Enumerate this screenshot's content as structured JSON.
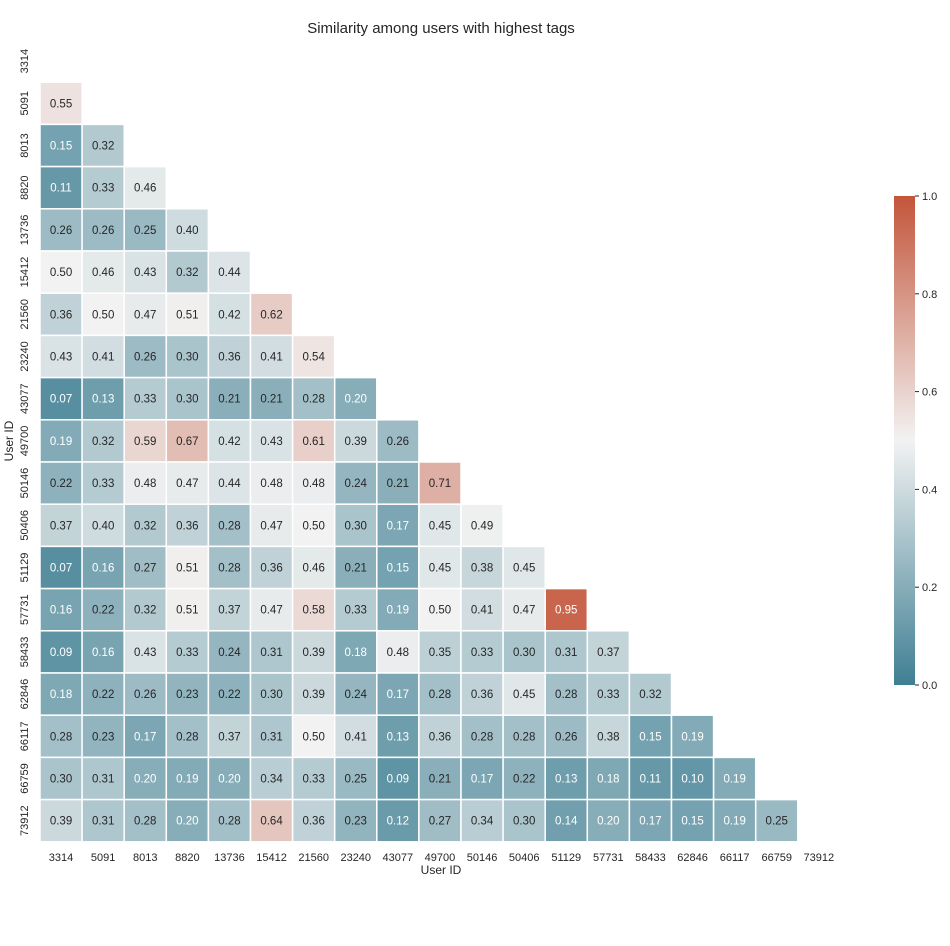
{
  "chart_data": {
    "type": "heatmap",
    "title": "Similarity among users with highest tags",
    "xlabel": "User ID",
    "ylabel": "User ID",
    "labels": [
      "3314",
      "5091",
      "8013",
      "8820",
      "13736",
      "15412",
      "21560",
      "23240",
      "43077",
      "49700",
      "50146",
      "50406",
      "51129",
      "57731",
      "58433",
      "62846",
      "66117",
      "66759",
      "73912"
    ],
    "mask": "upper-triangle-including-diagonal",
    "values": [
      [],
      [
        0.55
      ],
      [
        0.15,
        0.32
      ],
      [
        0.11,
        0.33,
        0.46
      ],
      [
        0.26,
        0.26,
        0.25,
        0.4
      ],
      [
        0.5,
        0.46,
        0.43,
        0.32,
        0.44
      ],
      [
        0.36,
        0.5,
        0.47,
        0.51,
        0.42,
        0.62
      ],
      [
        0.43,
        0.41,
        0.26,
        0.3,
        0.36,
        0.41,
        0.54
      ],
      [
        0.07,
        0.13,
        0.33,
        0.3,
        0.21,
        0.21,
        0.28,
        0.2
      ],
      [
        0.19,
        0.32,
        0.59,
        0.67,
        0.42,
        0.43,
        0.61,
        0.39,
        0.26
      ],
      [
        0.22,
        0.33,
        0.48,
        0.47,
        0.44,
        0.48,
        0.48,
        0.24,
        0.21,
        0.71
      ],
      [
        0.37,
        0.4,
        0.32,
        0.36,
        0.28,
        0.47,
        0.5,
        0.3,
        0.17,
        0.45,
        0.49
      ],
      [
        0.07,
        0.16,
        0.27,
        0.51,
        0.28,
        0.36,
        0.46,
        0.21,
        0.15,
        0.45,
        0.38,
        0.45
      ],
      [
        0.16,
        0.22,
        0.32,
        0.51,
        0.37,
        0.47,
        0.58,
        0.33,
        0.19,
        0.5,
        0.41,
        0.47,
        0.95
      ],
      [
        0.09,
        0.16,
        0.43,
        0.33,
        0.24,
        0.31,
        0.39,
        0.18,
        0.48,
        0.35,
        0.33,
        0.3,
        0.31,
        0.37
      ],
      [
        0.18,
        0.22,
        0.26,
        0.23,
        0.22,
        0.3,
        0.39,
        0.24,
        0.17,
        0.28,
        0.36,
        0.45,
        0.28,
        0.33,
        0.32
      ],
      [
        0.28,
        0.23,
        0.17,
        0.28,
        0.37,
        0.31,
        0.5,
        0.41,
        0.13,
        0.36,
        0.28,
        0.28,
        0.26,
        0.38,
        0.15,
        0.19
      ],
      [
        0.3,
        0.31,
        0.2,
        0.19,
        0.2,
        0.34,
        0.33,
        0.25,
        0.09,
        0.21,
        0.17,
        0.22,
        0.13,
        0.18,
        0.11,
        0.1,
        0.19
      ],
      [
        0.39,
        0.31,
        0.28,
        0.2,
        0.28,
        0.64,
        0.36,
        0.23,
        0.12,
        0.27,
        0.34,
        0.3,
        0.14,
        0.2,
        0.17,
        0.15,
        0.19,
        0.25
      ]
    ],
    "vmin": 0.0,
    "vmax": 1.0,
    "colorbar": {
      "ticks": [
        "0.0",
        "0.2",
        "0.4",
        "0.6",
        "0.8",
        "1.0"
      ],
      "tick_values": [
        0.0,
        0.2,
        0.4,
        0.6,
        0.8,
        1.0
      ],
      "colors": {
        "low": "#3f7f93",
        "mid": "#f2f2f2",
        "high": "#c3553a"
      }
    },
    "annotation_format": "2 decimals"
  }
}
